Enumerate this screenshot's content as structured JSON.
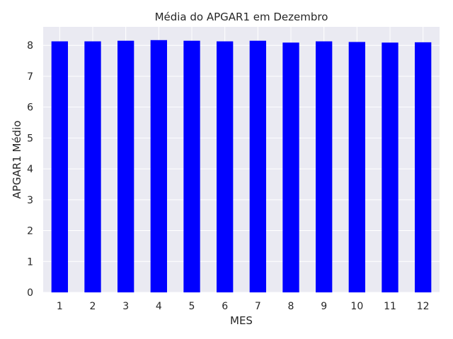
{
  "chart_data": {
    "type": "bar",
    "title": "Média do APGAR1 em Dezembro",
    "xlabel": "MES",
    "ylabel": "APGAR1 Médio",
    "categories": [
      "1",
      "2",
      "3",
      "4",
      "5",
      "6",
      "7",
      "8",
      "9",
      "10",
      "11",
      "12"
    ],
    "values": [
      8.13,
      8.13,
      8.15,
      8.17,
      8.15,
      8.13,
      8.15,
      8.09,
      8.13,
      8.11,
      8.09,
      8.1
    ],
    "ylim": [
      0,
      8.6
    ],
    "yticks": [
      "0",
      "1",
      "2",
      "3",
      "4",
      "5",
      "6",
      "7",
      "8"
    ],
    "grid": true,
    "bar_color": "#0000ff",
    "background_color": "#eaeaf2",
    "grid_color": "#ffffff"
  }
}
